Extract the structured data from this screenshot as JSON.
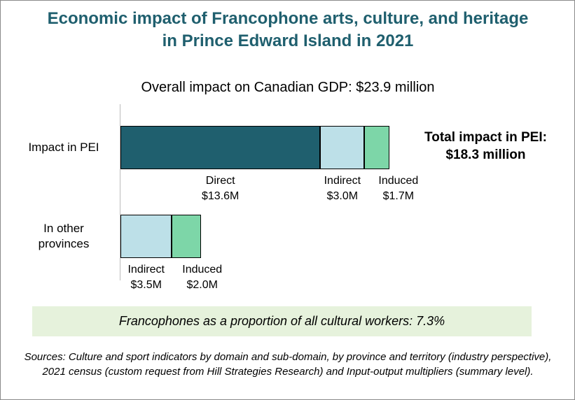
{
  "chart_data": {
    "type": "stacked-bar-horizontal",
    "title": "Economic impact of Francophone arts, culture, and heritage in Prince Edward Island in 2021",
    "subtitle": "Overall impact on Canadian GDP: $23.9 million",
    "annotation": "Total impact in PEI: $18.3 million",
    "note": "Francophones as a proportion of all cultural workers: 7.3%",
    "source": "Sources: Culture and sport indicators by domain and sub-domain, by province and territory (industry perspective), 2021 census (custom request from Hill Strategies Research) and Input-output multipliers (summary level).",
    "categories": [
      "Impact in PEI",
      "In other provinces"
    ],
    "series": [
      {
        "name": "Direct",
        "color": "#1f5f6e",
        "values": [
          13.6,
          null
        ],
        "value_labels": [
          "$13.6M",
          null
        ]
      },
      {
        "name": "Indirect",
        "color": "#bde0e8",
        "values": [
          3.0,
          3.5
        ],
        "value_labels": [
          "$3.0M",
          "$3.5M"
        ]
      },
      {
        "name": "Induced",
        "color": "#7dd6a8",
        "values": [
          1.7,
          2.0
        ],
        "value_labels": [
          "$1.7M",
          "$2.0M"
        ]
      }
    ]
  }
}
